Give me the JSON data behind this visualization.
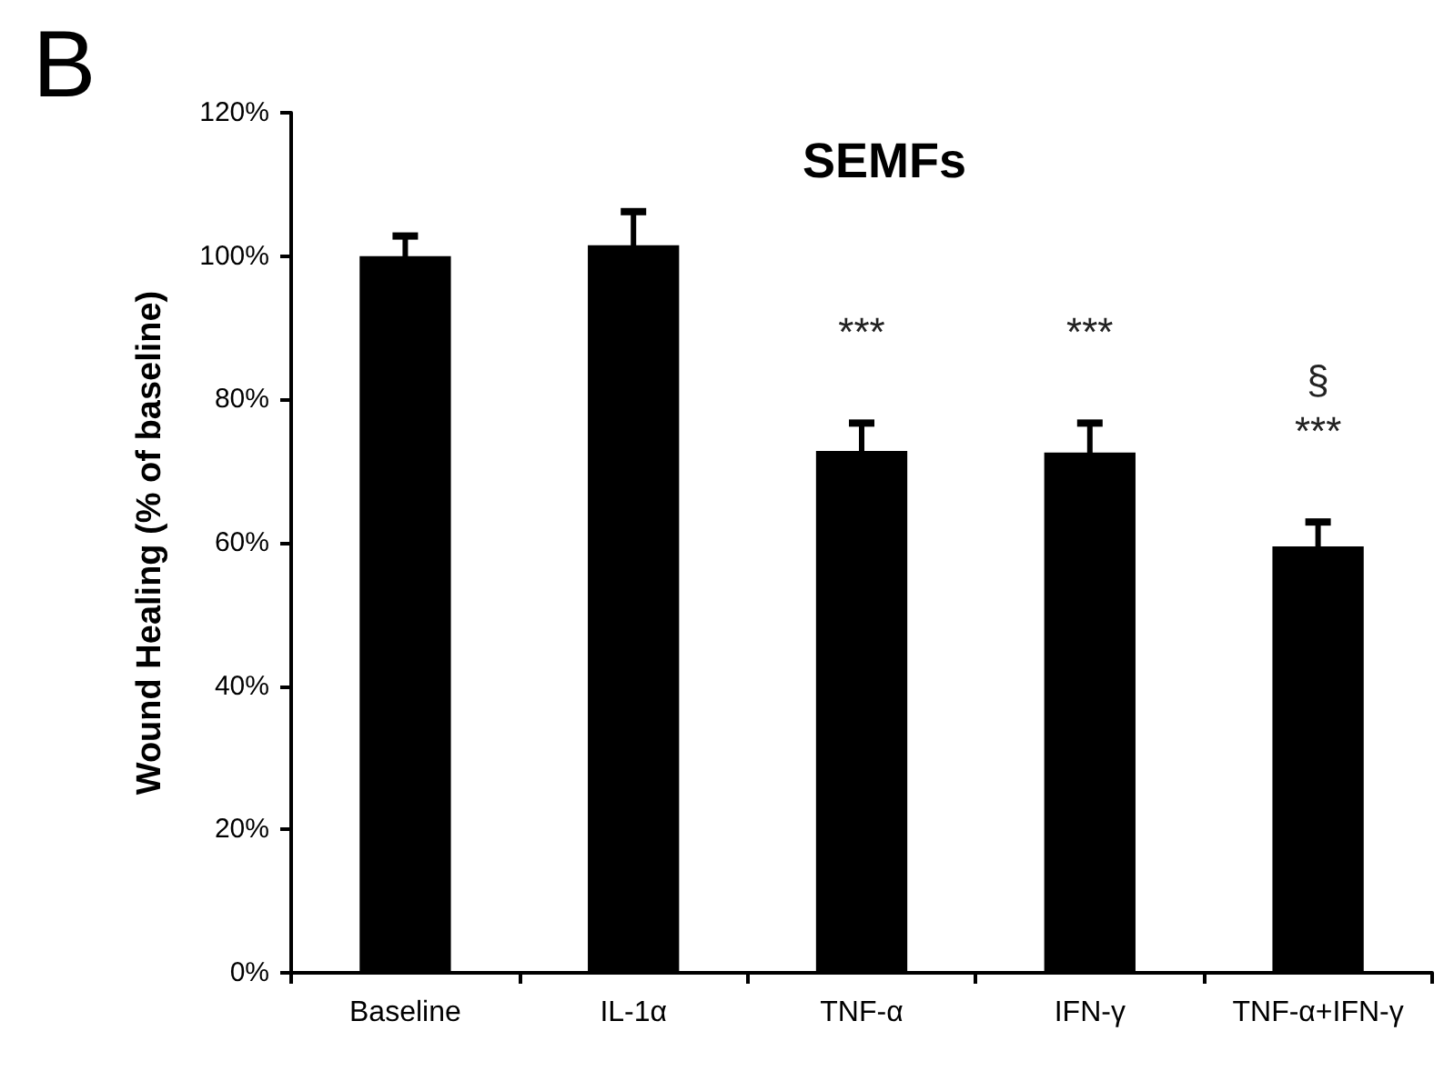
{
  "chart_data": {
    "type": "bar",
    "title": "SEMFs",
    "ylabel": "Wound Healing (% of baseline)",
    "categories": [
      "Baseline",
      "IL-1α",
      "TNF-α",
      "IFN-γ",
      "TNF-α+IFN-γ"
    ],
    "values": [
      100,
      101.5,
      72.8,
      72.6,
      59.5
    ],
    "errors": [
      2.8,
      4.7,
      3.9,
      4.1,
      3.4
    ],
    "color": "#000000",
    "ylim": [
      0,
      120
    ],
    "yticks": [
      {
        "value": 0,
        "label": "0%"
      },
      {
        "value": 20,
        "label": "20%"
      },
      {
        "value": 40,
        "label": "40%"
      },
      {
        "value": 60,
        "label": "60%"
      },
      {
        "value": 80,
        "label": "80%"
      },
      {
        "value": 100,
        "label": "100%"
      },
      {
        "value": 120,
        "label": "120%"
      }
    ],
    "grid": false,
    "annotations": [
      "B",
      "***",
      "***",
      "***",
      "§"
    ]
  }
}
